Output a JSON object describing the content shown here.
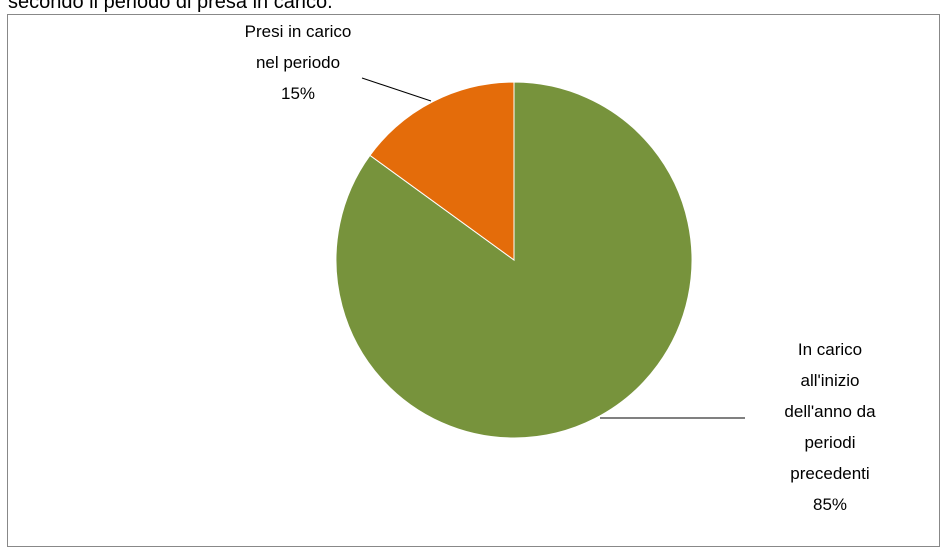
{
  "header": {
    "caption": "secondo il periodo di presa in carico."
  },
  "chart_data": {
    "type": "pie",
    "title": "",
    "start_angle_deg": 90,
    "direction": "clockwise",
    "legend": "none",
    "slices": [
      {
        "label": "In carico all'inizio dell'anno da periodi precedenti",
        "label_lines": [
          "In carico",
          "all'inizio",
          "dell'anno da",
          "periodi",
          "precedenti"
        ],
        "percent_text": "85%",
        "value": 85,
        "color": "#77933c"
      },
      {
        "label": "Presi in carico nel periodo",
        "label_lines": [
          "Presi in carico",
          "nel periodo"
        ],
        "percent_text": "15%",
        "value": 15,
        "color": "#e46c0a"
      }
    ]
  }
}
